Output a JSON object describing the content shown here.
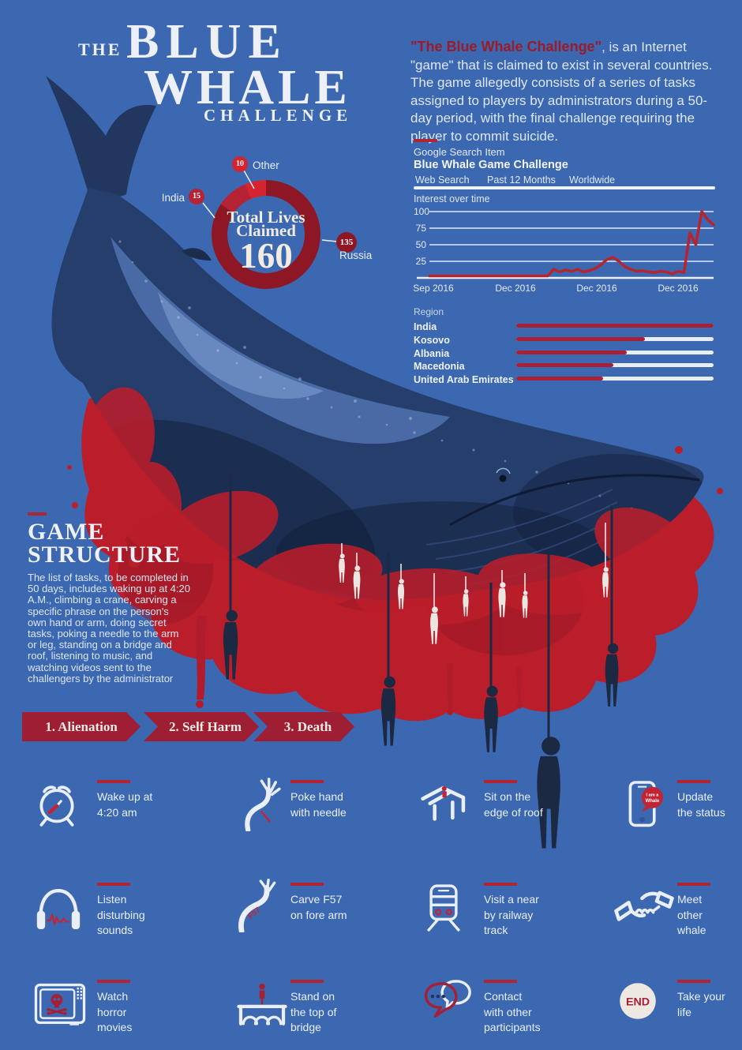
{
  "title": {
    "kicker": "THE",
    "line1": "BLUE",
    "line2": "WHALE",
    "line3": "CHALLENGE"
  },
  "intro": {
    "highlight": "\"The Blue Whale Challenge\"",
    "body": ", is an Internet \"game\" that is claimed to exist in several countries. The game allegedly consists of a series of tasks assigned to players by administrators during a 50-day period, with the final challenge requiring the player to commit suicide."
  },
  "donut": {
    "center_top": "Total Lives",
    "center_mid": "Claimed",
    "center_value": "160",
    "callouts": [
      {
        "value": "10",
        "label": "Other"
      },
      {
        "value": "15",
        "label": "India"
      },
      {
        "value": "135",
        "label": "Russia"
      }
    ]
  },
  "trends": {
    "eyebrow": "Google Search Item",
    "title": "Blue Whale Game Challenge",
    "filters": [
      "Web Search",
      "Past 12 Months",
      "Worldwide"
    ],
    "chart_label": "Interest over time",
    "y_ticks": [
      "100",
      "75",
      "50",
      "25"
    ],
    "x_labels": [
      "Sep 2016",
      "Dec 2016",
      "Dec 2016",
      "Dec 2016"
    ]
  },
  "region": {
    "label": "Region",
    "items": [
      {
        "name": "India",
        "value": 100
      },
      {
        "name": "Kosovo",
        "value": 65
      },
      {
        "name": "Albania",
        "value": 56
      },
      {
        "name": "Macedonia",
        "value": 49
      },
      {
        "name": "United Arab Emirates",
        "value": 44
      }
    ]
  },
  "game_structure": {
    "heading1": "GAME",
    "heading2": "STRUCTURE",
    "body": "The list of tasks, to be completed in 50 days, includes waking up at 4:20 A.M., climbing a crane, carving a specific phrase on the person's own hand or arm, doing secret tasks, poking a needle to the arm or leg, standing on a bridge and roof, listening to music, and watching videos sent to the challengers by the administrator"
  },
  "stages": [
    {
      "label": "1. Alienation"
    },
    {
      "label": "2. Self Harm"
    },
    {
      "label": "3. Death"
    }
  ],
  "tasks": [
    {
      "icon": "alarm-clock-icon",
      "lines": [
        "Wake up at",
        "4:20 am"
      ]
    },
    {
      "icon": "hand-needle-icon",
      "lines": [
        "Poke hand",
        "with needle"
      ]
    },
    {
      "icon": "roof-edge-icon",
      "lines": [
        "Sit on the",
        "edge of roof"
      ]
    },
    {
      "icon": "phone-status-icon",
      "lines": [
        "Update",
        "the status"
      ],
      "bubble_lines": [
        "I am a",
        "Whale"
      ]
    },
    {
      "icon": "headphones-icon",
      "lines": [
        "Listen",
        "disturbing",
        "sounds"
      ]
    },
    {
      "icon": "arm-carve-icon",
      "lines": [
        "Carve F57",
        "on fore arm"
      ],
      "carve": "F57"
    },
    {
      "icon": "train-icon",
      "lines": [
        "Visit a near",
        "by railway",
        "track"
      ]
    },
    {
      "icon": "handshake-icon",
      "lines": [
        "Meet",
        "other",
        "whale"
      ]
    },
    {
      "icon": "tv-skull-icon",
      "lines": [
        "Watch",
        "horror",
        "movies"
      ]
    },
    {
      "icon": "bridge-icon",
      "lines": [
        "Stand on",
        "the top of",
        "bridge"
      ]
    },
    {
      "icon": "chat-bubbles-icon",
      "lines": [
        "Contact",
        "with other",
        "participants"
      ]
    },
    {
      "icon": "end-icon",
      "lines": [
        "Take your",
        "life"
      ],
      "badge": "END"
    }
  ],
  "colors": {
    "background": "#3c68b2",
    "crimson": "#a82036",
    "bright_red": "#d5242f",
    "dark_red": "#8e1726",
    "line_red": "#b5242f",
    "tick_red": "#b02433",
    "text_light": "#e8eef7"
  },
  "chart_data": [
    {
      "type": "pie",
      "subtype": "donut",
      "title": "Total Lives Claimed",
      "total": 160,
      "categories": [
        "Russia",
        "India",
        "Other"
      ],
      "values": [
        135,
        15,
        10
      ],
      "colors": [
        "#8e1726",
        "#b52334",
        "#d5242f"
      ],
      "center_text": "Total Lives Claimed 160"
    },
    {
      "type": "line",
      "title": "Interest over time",
      "source": "Google Search Item - Blue Whale Game Challenge",
      "x_labels": [
        "Sep 2016",
        "Dec 2016",
        "Dec 2016",
        "Dec 2016"
      ],
      "ylim": [
        0,
        100
      ],
      "y_ticks": [
        25,
        50,
        75,
        100
      ],
      "grid": true,
      "legend_position": "none",
      "series": [
        {
          "name": "Blue Whale Game Challenge",
          "values": [
            3,
            3,
            3,
            3,
            3,
            3,
            3,
            3,
            3,
            3,
            3,
            3,
            3,
            3,
            3,
            3,
            3,
            3,
            3,
            3,
            3,
            13,
            9,
            12,
            10,
            13,
            9,
            11,
            14,
            20,
            28,
            31,
            25,
            17,
            13,
            10,
            11,
            9,
            8,
            10,
            9,
            6,
            10,
            8,
            68,
            50,
            100,
            88,
            80
          ]
        }
      ]
    },
    {
      "type": "bar",
      "orientation": "horizontal",
      "title": "Region",
      "xlim": [
        0,
        100
      ],
      "categories": [
        "India",
        "Kosovo",
        "Albania",
        "Macedonia",
        "United Arab Emirates"
      ],
      "values": [
        100,
        65,
        56,
        49,
        44
      ]
    }
  ]
}
